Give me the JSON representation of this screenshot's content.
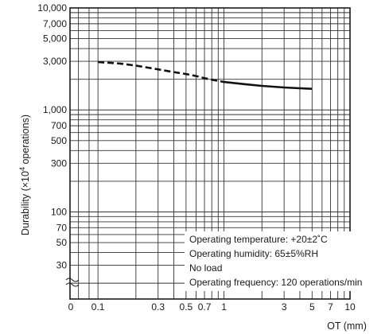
{
  "chart_data": {
    "type": "line",
    "title": "",
    "xlabel": "OT (mm)",
    "ylabel_prefix": "Durability (×10",
    "ylabel_exp": "4",
    "ylabel_suffix": " operations)",
    "x_scale": "log",
    "y_scale": "log",
    "xlim": [
      0.06,
      10
    ],
    "ylim": [
      14,
      10000
    ],
    "grid": true,
    "x_ticks": [
      {
        "value": 0.1,
        "label": "0.1"
      },
      {
        "value": 0.3,
        "label": "0.3"
      },
      {
        "value": 0.5,
        "label": "0.5"
      },
      {
        "value": 0.7,
        "label": "0.7"
      },
      {
        "value": 1,
        "label": "1"
      },
      {
        "value": 3,
        "label": "3"
      },
      {
        "value": 5,
        "label": "5"
      },
      {
        "value": 7,
        "label": "7"
      },
      {
        "value": 10,
        "label": "10"
      }
    ],
    "x_zero_label": "0",
    "y_ticks": [
      {
        "value": 30,
        "label": "30"
      },
      {
        "value": 50,
        "label": "50"
      },
      {
        "value": 70,
        "label": "70"
      },
      {
        "value": 100,
        "label": "100"
      },
      {
        "value": 300,
        "label": "300"
      },
      {
        "value": 500,
        "label": "500"
      },
      {
        "value": 700,
        "label": "700"
      },
      {
        "value": 1000,
        "label": "1,000"
      },
      {
        "value": 3000,
        "label": "3,000"
      },
      {
        "value": 5000,
        "label": "5,000"
      },
      {
        "value": 7000,
        "label": "7,000"
      },
      {
        "value": 10000,
        "label": "10,000"
      }
    ],
    "series": [
      {
        "style": "dashed",
        "x": [
          0.1,
          0.15,
          0.2,
          0.3,
          0.4,
          0.5,
          0.6,
          0.7,
          0.8,
          1.0
        ],
        "y": [
          2950,
          2850,
          2720,
          2500,
          2350,
          2250,
          2150,
          2050,
          1980,
          1880
        ]
      },
      {
        "style": "solid",
        "x": [
          1.0,
          1.5,
          2.0,
          3.0,
          4.0,
          5.0
        ],
        "y": [
          1880,
          1780,
          1720,
          1660,
          1630,
          1610
        ]
      }
    ],
    "annotations": [
      "Operating temperature: +20±2˚C",
      "Operating humidity: 65±5%RH",
      "No load",
      "Operating frequency: 120 operations/min"
    ],
    "annotation_placement": "bottom-right"
  }
}
